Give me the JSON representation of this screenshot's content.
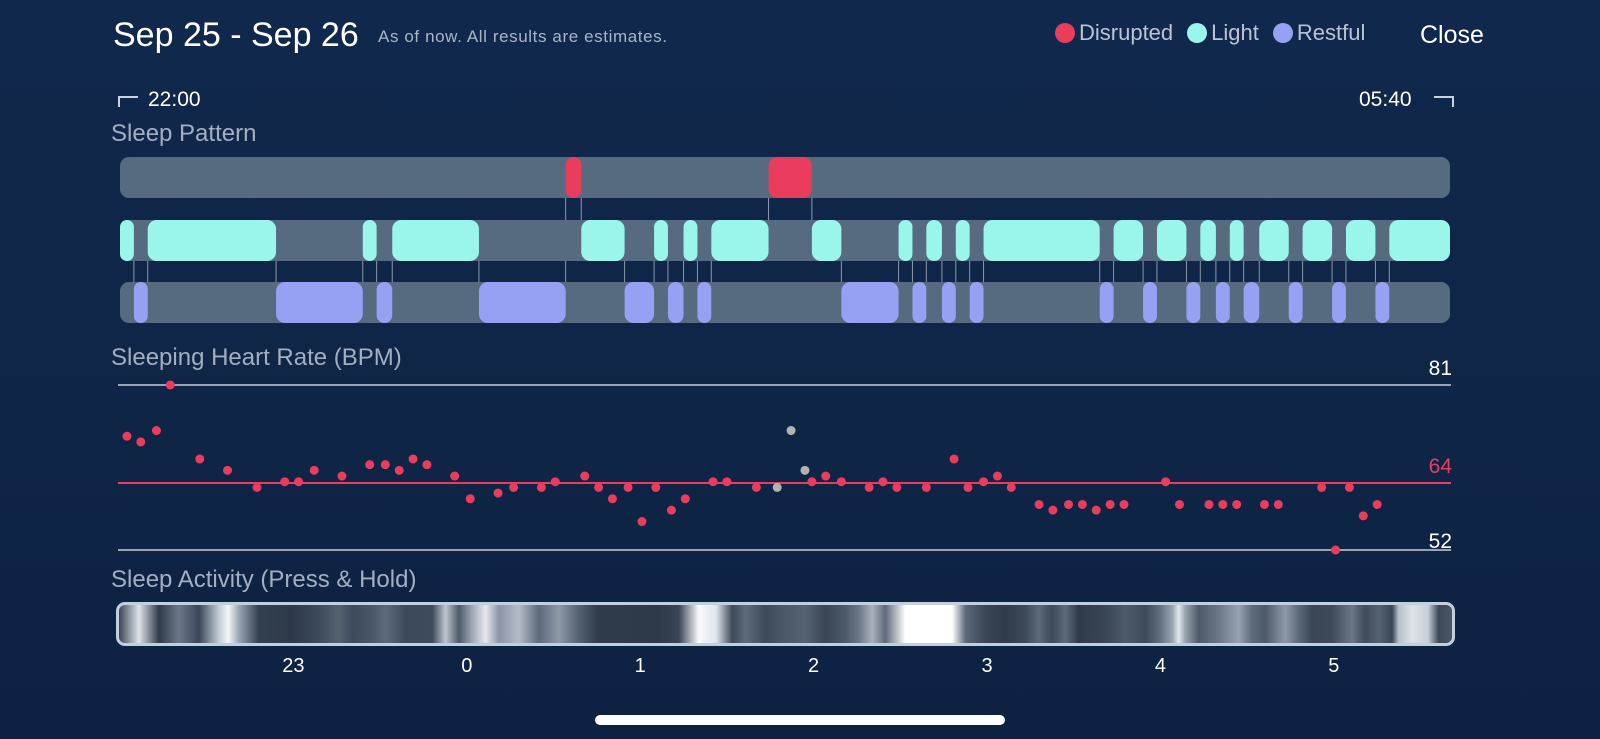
{
  "header": {
    "title": "Sep 25 - Sep 26",
    "subtitle": "As of now. All results are estimates.",
    "close_label": "Close"
  },
  "legend": [
    {
      "label": "Disrupted",
      "color": "#ea3d5e"
    },
    {
      "label": "Light",
      "color": "#9af6ea"
    },
    {
      "label": "Restful",
      "color": "#97a1f3"
    }
  ],
  "time_range": {
    "start": "22:00",
    "end": "05:40"
  },
  "sleep_pattern": {
    "title": "Sleep Pattern",
    "colors": {
      "disrupted": "#ea3d5e",
      "light": "#9af6ea",
      "restful": "#97a1f3",
      "track": "#566a80",
      "connector": "#8c98aa"
    },
    "segments": [
      {
        "stage": "light",
        "start": 0.0,
        "end": 0.08
      },
      {
        "stage": "restful",
        "start": 0.08,
        "end": 0.16
      },
      {
        "stage": "light",
        "start": 0.16,
        "end": 0.9
      },
      {
        "stage": "restful",
        "start": 0.9,
        "end": 1.4
      },
      {
        "stage": "light",
        "start": 1.4,
        "end": 1.48
      },
      {
        "stage": "restful",
        "start": 1.48,
        "end": 1.57
      },
      {
        "stage": "light",
        "start": 1.57,
        "end": 2.07
      },
      {
        "stage": "restful",
        "start": 2.07,
        "end": 2.57
      },
      {
        "stage": "disrupted",
        "start": 2.57,
        "end": 2.66
      },
      {
        "stage": "light",
        "start": 2.66,
        "end": 2.91
      },
      {
        "stage": "restful",
        "start": 2.91,
        "end": 3.08
      },
      {
        "stage": "light",
        "start": 3.08,
        "end": 3.16
      },
      {
        "stage": "restful",
        "start": 3.16,
        "end": 3.25
      },
      {
        "stage": "light",
        "start": 3.25,
        "end": 3.33
      },
      {
        "stage": "restful",
        "start": 3.33,
        "end": 3.41
      },
      {
        "stage": "light",
        "start": 3.41,
        "end": 3.74
      },
      {
        "stage": "disrupted",
        "start": 3.74,
        "end": 3.99
      },
      {
        "stage": "light",
        "start": 3.99,
        "end": 4.16
      },
      {
        "stage": "restful",
        "start": 4.16,
        "end": 4.49
      },
      {
        "stage": "light",
        "start": 4.49,
        "end": 4.57
      },
      {
        "stage": "restful",
        "start": 4.57,
        "end": 4.65
      },
      {
        "stage": "light",
        "start": 4.65,
        "end": 4.74
      },
      {
        "stage": "restful",
        "start": 4.74,
        "end": 4.82
      },
      {
        "stage": "light",
        "start": 4.82,
        "end": 4.9
      },
      {
        "stage": "restful",
        "start": 4.9,
        "end": 4.98
      },
      {
        "stage": "light",
        "start": 4.98,
        "end": 5.65
      },
      {
        "stage": "restful",
        "start": 5.65,
        "end": 5.73
      },
      {
        "stage": "light",
        "start": 5.73,
        "end": 5.9
      },
      {
        "stage": "restful",
        "start": 5.9,
        "end": 5.98
      },
      {
        "stage": "light",
        "start": 5.98,
        "end": 6.15
      },
      {
        "stage": "restful",
        "start": 6.15,
        "end": 6.23
      },
      {
        "stage": "light",
        "start": 6.23,
        "end": 6.32
      },
      {
        "stage": "restful",
        "start": 6.32,
        "end": 6.4
      },
      {
        "stage": "light",
        "start": 6.4,
        "end": 6.48
      },
      {
        "stage": "restful",
        "start": 6.48,
        "end": 6.57
      },
      {
        "stage": "light",
        "start": 6.57,
        "end": 6.74
      },
      {
        "stage": "restful",
        "start": 6.74,
        "end": 6.82
      },
      {
        "stage": "light",
        "start": 6.82,
        "end": 6.99
      },
      {
        "stage": "restful",
        "start": 6.99,
        "end": 7.07
      },
      {
        "stage": "light",
        "start": 7.07,
        "end": 7.24
      },
      {
        "stage": "restful",
        "start": 7.24,
        "end": 7.32
      },
      {
        "stage": "light",
        "start": 7.32,
        "end": 7.67
      }
    ]
  },
  "heart_rate": {
    "title": "Sleeping Heart Rate (BPM)",
    "max_label": "81",
    "avg_label": "64",
    "min_label": "52",
    "dot_color": "#ea3d5e",
    "gray_color": "#b3b3b3",
    "line_color": "#97a3b6",
    "avg_color": "#ea3d5e"
  },
  "chart_data": {
    "type": "scatter",
    "title": "Sleeping Heart Rate (BPM)",
    "x_unit": "hours since 22:00",
    "xlim": [
      0.0,
      7.67
    ],
    "ylim": [
      52,
      81
    ],
    "reference_lines": {
      "max": 81,
      "average": 64,
      "min": 52
    },
    "series": [
      {
        "name": "",
        "points": [
          {
            "x": 0.04,
            "y": 72
          },
          {
            "x": 0.12,
            "y": 71
          },
          {
            "x": 0.21,
            "y": 73
          },
          {
            "x": 0.29,
            "y": 81
          },
          {
            "x": 0.46,
            "y": 68
          },
          {
            "x": 0.62,
            "y": 66
          },
          {
            "x": 0.79,
            "y": 63
          },
          {
            "x": 0.95,
            "y": 64
          },
          {
            "x": 1.03,
            "y": 64
          },
          {
            "x": 1.12,
            "y": 66
          },
          {
            "x": 1.28,
            "y": 65
          },
          {
            "x": 1.44,
            "y": 67
          },
          {
            "x": 1.53,
            "y": 67
          },
          {
            "x": 1.61,
            "y": 66
          },
          {
            "x": 1.69,
            "y": 68
          },
          {
            "x": 1.77,
            "y": 67
          },
          {
            "x": 1.93,
            "y": 65
          },
          {
            "x": 2.02,
            "y": 61
          },
          {
            "x": 2.18,
            "y": 62
          },
          {
            "x": 2.27,
            "y": 63
          },
          {
            "x": 2.43,
            "y": 63
          },
          {
            "x": 2.51,
            "y": 64
          },
          {
            "x": 2.68,
            "y": 65
          },
          {
            "x": 2.76,
            "y": 63
          },
          {
            "x": 2.84,
            "y": 61
          },
          {
            "x": 2.93,
            "y": 63
          },
          {
            "x": 3.01,
            "y": 57
          },
          {
            "x": 3.09,
            "y": 63
          },
          {
            "x": 3.18,
            "y": 59
          },
          {
            "x": 3.26,
            "y": 61
          },
          {
            "x": 3.42,
            "y": 64
          },
          {
            "x": 3.5,
            "y": 64
          },
          {
            "x": 3.67,
            "y": 63
          },
          {
            "x": 3.99,
            "y": 64
          },
          {
            "x": 4.07,
            "y": 65
          },
          {
            "x": 4.16,
            "y": 64
          },
          {
            "x": 4.32,
            "y": 63
          },
          {
            "x": 4.4,
            "y": 64
          },
          {
            "x": 4.48,
            "y": 63
          },
          {
            "x": 4.65,
            "y": 63
          },
          {
            "x": 4.81,
            "y": 68
          },
          {
            "x": 4.89,
            "y": 63
          },
          {
            "x": 4.98,
            "y": 64
          },
          {
            "x": 5.06,
            "y": 65
          },
          {
            "x": 5.14,
            "y": 63
          },
          {
            "x": 5.3,
            "y": 60
          },
          {
            "x": 5.38,
            "y": 59
          },
          {
            "x": 5.47,
            "y": 60
          },
          {
            "x": 5.55,
            "y": 60
          },
          {
            "x": 5.63,
            "y": 59
          },
          {
            "x": 5.71,
            "y": 60
          },
          {
            "x": 5.79,
            "y": 60
          },
          {
            "x": 6.03,
            "y": 64
          },
          {
            "x": 6.11,
            "y": 60
          },
          {
            "x": 6.28,
            "y": 60
          },
          {
            "x": 6.36,
            "y": 60
          },
          {
            "x": 6.44,
            "y": 60
          },
          {
            "x": 6.6,
            "y": 60
          },
          {
            "x": 6.68,
            "y": 60
          },
          {
            "x": 6.93,
            "y": 63
          },
          {
            "x": 7.01,
            "y": 52
          },
          {
            "x": 7.09,
            "y": 63
          },
          {
            "x": 7.17,
            "y": 58
          },
          {
            "x": 7.25,
            "y": 60
          }
        ]
      },
      {
        "name": "",
        "color": "gray",
        "points": [
          {
            "x": 3.79,
            "y": 63
          },
          {
            "x": 3.87,
            "y": 73
          },
          {
            "x": 3.95,
            "y": 66
          }
        ]
      }
    ]
  },
  "sleep_activity": {
    "title": "Sleep Activity (Press & Hold)",
    "axis_ticks": [
      {
        "label": "23",
        "hour": 1
      },
      {
        "label": "0",
        "hour": 2
      },
      {
        "label": "1",
        "hour": 3
      },
      {
        "label": "2",
        "hour": 4
      },
      {
        "label": "3",
        "hour": 5
      },
      {
        "label": "4",
        "hour": 6
      },
      {
        "label": "5",
        "hour": 7
      }
    ],
    "gradient": [
      [
        0.0,
        "#3a4657"
      ],
      [
        0.015,
        "#dfe4ea"
      ],
      [
        0.03,
        "#2f3a4b"
      ],
      [
        0.045,
        "#6b7888"
      ],
      [
        0.06,
        "#3a4657"
      ],
      [
        0.075,
        "#c4ccd6"
      ],
      [
        0.082,
        "#f5f6f8"
      ],
      [
        0.09,
        "#9aa5b3"
      ],
      [
        0.105,
        "#33404f"
      ],
      [
        0.13,
        "#2e3a4a"
      ],
      [
        0.15,
        "#3d4a5b"
      ],
      [
        0.165,
        "#55626f"
      ],
      [
        0.175,
        "#3d4a5b"
      ],
      [
        0.19,
        "#4b5868"
      ],
      [
        0.2,
        "#5d6a7a"
      ],
      [
        0.215,
        "#3d4a5b"
      ],
      [
        0.235,
        "#3e4b5a"
      ],
      [
        0.245,
        "#bdc5cf"
      ],
      [
        0.255,
        "#4d5a6a"
      ],
      [
        0.265,
        "#9fa9b6"
      ],
      [
        0.275,
        "#e6e9ee"
      ],
      [
        0.285,
        "#8b96a4"
      ],
      [
        0.3,
        "#b3bcc8"
      ],
      [
        0.315,
        "#5d6a7a"
      ],
      [
        0.33,
        "#8e99a6"
      ],
      [
        0.345,
        "#54616f"
      ],
      [
        0.36,
        "#2f3a4a"
      ],
      [
        0.38,
        "#2f3a4a"
      ],
      [
        0.405,
        "#2d3848"
      ],
      [
        0.42,
        "#3a4556"
      ],
      [
        0.435,
        "#fafbfc"
      ],
      [
        0.448,
        "#dfe4ea"
      ],
      [
        0.46,
        "#3d4a5a"
      ],
      [
        0.47,
        "#5e6b7a"
      ],
      [
        0.485,
        "#3d4a5a"
      ],
      [
        0.5,
        "#4d5a69"
      ],
      [
        0.515,
        "#55626f"
      ],
      [
        0.53,
        "#3a4656"
      ],
      [
        0.545,
        "#4d5a69"
      ],
      [
        0.555,
        "#6b7785"
      ],
      [
        0.565,
        "#a8b2be"
      ],
      [
        0.575,
        "#5e6b7a"
      ],
      [
        0.59,
        "#ffffff"
      ],
      [
        0.625,
        "#ffffff"
      ],
      [
        0.635,
        "#5d6a7a"
      ],
      [
        0.65,
        "#3a4656"
      ],
      [
        0.665,
        "#2f3a4a"
      ],
      [
        0.68,
        "#3d4a5a"
      ],
      [
        0.69,
        "#5d6a78"
      ],
      [
        0.7,
        "#3d4a5a"
      ],
      [
        0.71,
        "#5d6a78"
      ],
      [
        0.72,
        "#2f3a4a"
      ],
      [
        0.74,
        "#3a4656"
      ],
      [
        0.755,
        "#4d5a69"
      ],
      [
        0.77,
        "#3d4a5a"
      ],
      [
        0.78,
        "#5e6b7a"
      ],
      [
        0.79,
        "#98a3b0"
      ],
      [
        0.795,
        "#e4e8ed"
      ],
      [
        0.8,
        "#98a3b0"
      ],
      [
        0.81,
        "#4d5a69"
      ],
      [
        0.825,
        "#6b7785"
      ],
      [
        0.84,
        "#98a3b0"
      ],
      [
        0.85,
        "#5e6b7a"
      ],
      [
        0.86,
        "#4d5a69"
      ],
      [
        0.875,
        "#8f9aa7"
      ],
      [
        0.885,
        "#5d6a78"
      ],
      [
        0.895,
        "#3a4656"
      ],
      [
        0.91,
        "#3f4b5b"
      ],
      [
        0.925,
        "#6b7785"
      ],
      [
        0.935,
        "#3f4b5b"
      ],
      [
        0.945,
        "#55626f"
      ],
      [
        0.955,
        "#3a4656"
      ],
      [
        0.96,
        "#b7c0cb"
      ],
      [
        0.97,
        "#dde2e8"
      ],
      [
        0.982,
        "#c8cfd8"
      ],
      [
        0.99,
        "#3c4858"
      ],
      [
        1.0,
        "#4b5767"
      ]
    ]
  },
  "colors": {
    "activity_border": "#c3cfdd",
    "avg_line": "#ea3d5e"
  }
}
